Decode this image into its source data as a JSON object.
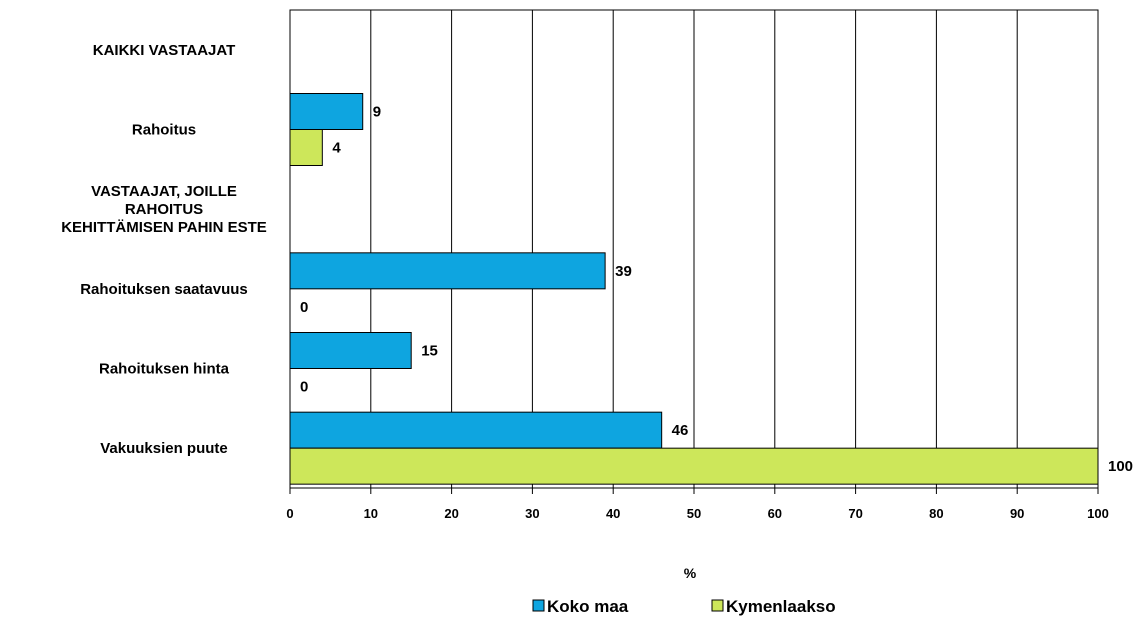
{
  "chart_data": {
    "type": "bar",
    "orientation": "horizontal",
    "categories": [
      "KAIKKI VASTAAJAT",
      "Rahoitus",
      "VASTAAJAT, JOILLE RAHOITUS KEHITTÄMISEN PAHIN ESTE",
      "Rahoituksen saatavuus",
      "Rahoituksen hinta",
      "Vakuuksien puute"
    ],
    "category_lines": [
      [
        "KAIKKI VASTAAJAT"
      ],
      [
        "Rahoitus"
      ],
      [
        "VASTAAJAT, JOILLE",
        "RAHOITUS",
        "KEHITTÄMISEN PAHIN ESTE"
      ],
      [
        "Rahoituksen saatavuus"
      ],
      [
        "Rahoituksen hinta"
      ],
      [
        "Vakuuksien puute"
      ]
    ],
    "series": [
      {
        "name": "Koko maa",
        "color": "#0ea5e0",
        "values": [
          null,
          9,
          null,
          39,
          15,
          46
        ]
      },
      {
        "name": "Kymenlaakso",
        "color": "#cde75a",
        "values": [
          null,
          4,
          null,
          0,
          0,
          100
        ]
      }
    ],
    "xlabel": "%",
    "xlim": [
      0,
      100
    ],
    "xticks": [
      "0",
      "10",
      "20",
      "30",
      "40",
      "50",
      "60",
      "70",
      "80",
      "90",
      "100"
    ],
    "grid": "vertical",
    "legend": "bottom-center"
  }
}
